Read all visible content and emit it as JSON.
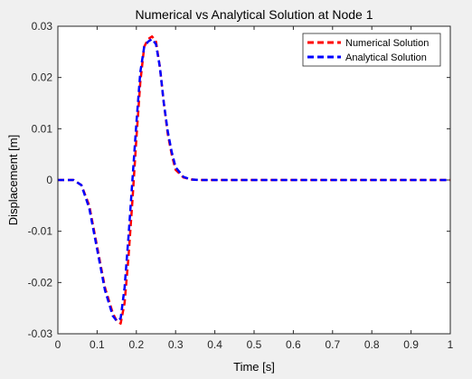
{
  "chart_data": {
    "type": "line",
    "title": "Numerical vs Analytical Solution at Node 1",
    "xlabel": "Time [s]",
    "ylabel": "Displacement [m]",
    "xlim": [
      0,
      1
    ],
    "ylim": [
      -0.03,
      0.03
    ],
    "xticks": [
      0,
      0.1,
      0.2,
      0.3,
      0.4,
      0.5,
      0.6,
      0.7,
      0.8,
      0.9,
      1
    ],
    "xtick_labels": [
      "0",
      "0.1",
      "0.2",
      "0.3",
      "0.4",
      "0.5",
      "0.6",
      "0.7",
      "0.8",
      "0.9",
      "1"
    ],
    "yticks": [
      -0.03,
      -0.02,
      -0.01,
      0,
      0.01,
      0.02,
      0.03
    ],
    "ytick_labels": [
      "-0.03",
      "-0.02",
      "-0.01",
      "0",
      "0.01",
      "0.02",
      "0.03"
    ],
    "grid": false,
    "legend_position": "top-right",
    "series": [
      {
        "name": "Numerical Solution",
        "color": "#ff0000",
        "line_style": "dashed",
        "x": [
          0,
          0.02,
          0.04,
          0.06,
          0.08,
          0.1,
          0.12,
          0.14,
          0.15,
          0.16,
          0.17,
          0.18,
          0.19,
          0.2,
          0.21,
          0.22,
          0.23,
          0.24,
          0.25,
          0.26,
          0.27,
          0.28,
          0.29,
          0.3,
          0.32,
          0.34,
          0.36,
          0.38,
          0.4,
          0.5,
          0.6,
          0.7,
          0.8,
          0.9,
          1.0
        ],
        "y": [
          0,
          0,
          0,
          -0.001,
          -0.005,
          -0.013,
          -0.021,
          -0.026,
          -0.0275,
          -0.028,
          -0.024,
          -0.015,
          -0.004,
          0.008,
          0.019,
          0.026,
          0.0275,
          0.028,
          0.027,
          0.022,
          0.015,
          0.009,
          0.005,
          0.002,
          0.0005,
          0.0001,
          0,
          0,
          0,
          0,
          0,
          0,
          0,
          0,
          0
        ]
      },
      {
        "name": "Analytical Solution",
        "color": "#0000ff",
        "line_style": "dashed",
        "x": [
          0,
          0.02,
          0.04,
          0.06,
          0.08,
          0.1,
          0.12,
          0.14,
          0.15,
          0.16,
          0.17,
          0.18,
          0.19,
          0.2,
          0.21,
          0.22,
          0.23,
          0.24,
          0.25,
          0.26,
          0.27,
          0.28,
          0.29,
          0.3,
          0.32,
          0.34,
          0.36,
          0.38,
          0.4,
          0.5,
          0.6,
          0.7,
          0.8,
          0.9,
          1.0
        ],
        "y": [
          0,
          0,
          0,
          -0.001,
          -0.0055,
          -0.0135,
          -0.0215,
          -0.0265,
          -0.0275,
          -0.027,
          -0.021,
          -0.011,
          0.0,
          0.011,
          0.021,
          0.026,
          0.027,
          0.0275,
          0.0265,
          0.022,
          0.015,
          0.0095,
          0.0055,
          0.0025,
          0.0006,
          0.0001,
          0,
          0,
          0,
          0,
          0,
          0,
          0,
          0,
          0
        ]
      }
    ]
  }
}
